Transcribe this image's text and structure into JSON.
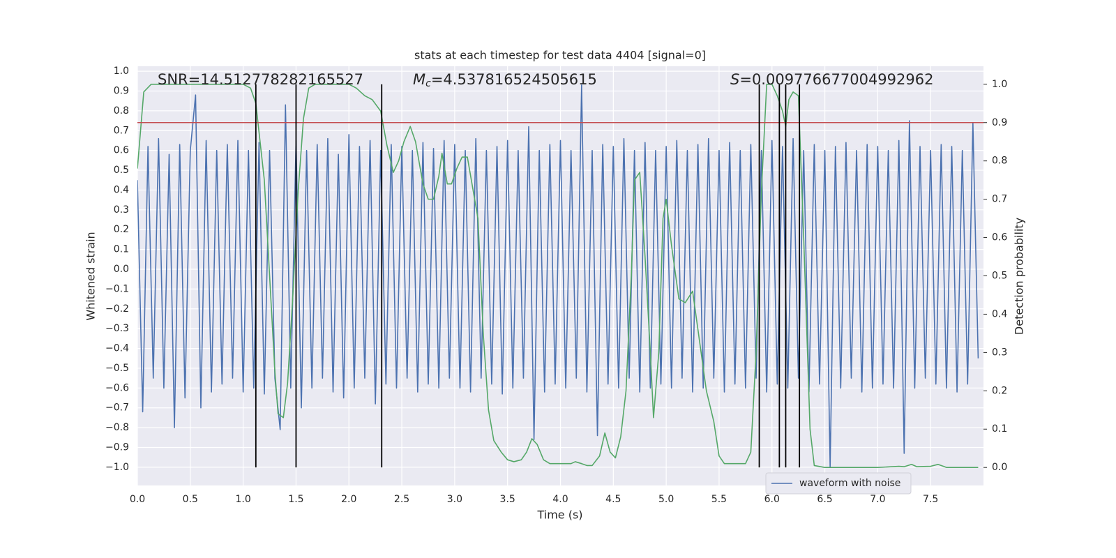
{
  "chart_data": {
    "type": "line",
    "title": "stats at each timestep for test data 4404 [signal=0]",
    "xlabel": "Time (s)",
    "ylabel": "Whitened strain",
    "y2label": "Detection probability",
    "annotations": [
      {
        "text": "SNR=14.512778282165527"
      },
      {
        "symbol": "M",
        "subscript": "c",
        "text": "=4.537816524505615"
      },
      {
        "symbol": "S",
        "text": "=0.009776677004992962"
      }
    ],
    "xlim": [
      0,
      8
    ],
    "ylim": [
      -1.092,
      1.025
    ],
    "y2lim": [
      -0.047,
      1.047
    ],
    "xticks": [
      {
        "value": 0,
        "label": "0.0"
      },
      0.5,
      {
        "value": 1,
        "label": "1.0"
      },
      1.5,
      {
        "value": 2,
        "label": "2.0"
      },
      2.5,
      {
        "value": 3,
        "label": "3.0"
      },
      3.5,
      {
        "value": 4,
        "label": "4.0"
      },
      4.5,
      {
        "value": 5,
        "label": "5.0"
      },
      5.5,
      {
        "value": 6,
        "label": "6.0"
      },
      6.5,
      {
        "value": 7,
        "label": "7.0"
      },
      7.5
    ],
    "yticks": [
      {
        "value": -1,
        "label": "−1.0"
      },
      {
        "value": -0.9,
        "label": "−0.9"
      },
      {
        "value": -0.8,
        "label": "−0.8"
      },
      {
        "value": -0.7,
        "label": "−0.7"
      },
      {
        "value": -0.6,
        "label": "−0.6"
      },
      {
        "value": -0.5,
        "label": "−0.5"
      },
      {
        "value": -0.4,
        "label": "−0.4"
      },
      {
        "value": -0.3,
        "label": "−0.3"
      },
      {
        "value": -0.2,
        "label": "−0.2"
      },
      {
        "value": -0.1,
        "label": "−0.1"
      },
      {
        "value": 0,
        "label": "0.0"
      },
      0.1,
      0.2,
      0.3,
      0.4,
      0.5,
      0.6,
      0.7,
      0.8,
      0.9,
      {
        "value": 1,
        "label": "1.0"
      }
    ],
    "y2ticks": [
      {
        "value": 0,
        "label": "0.0"
      },
      0.1,
      0.2,
      0.3,
      0.4,
      0.5,
      0.6,
      0.7,
      0.8,
      0.9,
      {
        "value": 1,
        "label": "1.0"
      }
    ],
    "grid": true,
    "legend": "lower right",
    "series": [
      {
        "name": "waveform with noise",
        "color": "#4c72b0",
        "x": [
          0,
          0.05,
          0.1,
          0.15,
          0.2,
          0.25,
          0.3,
          0.35,
          0.4,
          0.45,
          0.5,
          0.55,
          0.6,
          0.65,
          0.7,
          0.75,
          0.8,
          0.85,
          0.9,
          0.95,
          1,
          1.05,
          1.1,
          1.15,
          1.2,
          1.25,
          1.3,
          1.35,
          1.4,
          1.45,
          1.5,
          1.55,
          1.6,
          1.65,
          1.7,
          1.75,
          1.8,
          1.85,
          1.9,
          1.95,
          2,
          2.05,
          2.1,
          2.15,
          2.2,
          2.25,
          2.3,
          2.35,
          2.4,
          2.45,
          2.5,
          2.55,
          2.6,
          2.65,
          2.7,
          2.75,
          2.8,
          2.85,
          2.9,
          2.95,
          3,
          3.05,
          3.1,
          3.15,
          3.2,
          3.25,
          3.3,
          3.35,
          3.4,
          3.45,
          3.5,
          3.55,
          3.6,
          3.65,
          3.7,
          3.75,
          3.8,
          3.85,
          3.9,
          3.95,
          4,
          4.05,
          4.1,
          4.15,
          4.2,
          4.25,
          4.3,
          4.35,
          4.4,
          4.45,
          4.5,
          4.55,
          4.6,
          4.65,
          4.7,
          4.75,
          4.8,
          4.85,
          4.9,
          4.95,
          5,
          5.05,
          5.1,
          5.15,
          5.2,
          5.25,
          5.3,
          5.35,
          5.4,
          5.45,
          5.5,
          5.55,
          5.6,
          5.65,
          5.7,
          5.75,
          5.8,
          5.85,
          5.9,
          5.95,
          6,
          6.05,
          6.1,
          6.15,
          6.2,
          6.25,
          6.3,
          6.35,
          6.4,
          6.45,
          6.5,
          6.55,
          6.6,
          6.65,
          6.7,
          6.75,
          6.8,
          6.85,
          6.9,
          6.95,
          7,
          7.05,
          7.1,
          7.15,
          7.2,
          7.25,
          7.3,
          7.35,
          7.4,
          7.45,
          7.5,
          7.55,
          7.6,
          7.65,
          7.7,
          7.75,
          7.8,
          7.85,
          7.9,
          7.95
        ],
        "values": [
          0.45,
          -0.72,
          0.62,
          -0.55,
          0.66,
          -0.6,
          0.58,
          -0.8,
          0.63,
          -0.65,
          0.6,
          0.88,
          -0.7,
          0.65,
          -0.62,
          0.6,
          -0.58,
          0.63,
          -0.55,
          0.65,
          -0.62,
          0.6,
          -0.6,
          0.64,
          -0.63,
          0.6,
          -0.55,
          -0.81,
          0.83,
          -0.6,
          0.65,
          -0.7,
          0.6,
          -0.6,
          0.63,
          -0.55,
          0.66,
          -0.62,
          0.58,
          -0.65,
          0.68,
          -0.6,
          0.62,
          -0.55,
          0.65,
          -0.68,
          0.6,
          -0.58,
          0.63,
          -0.6,
          0.62,
          -0.55,
          0.6,
          -0.62,
          0.64,
          -0.58,
          0.61,
          -0.6,
          0.65,
          -0.55,
          0.63,
          -0.6,
          0.6,
          -0.62,
          0.66,
          -0.55,
          0.6,
          -0.58,
          0.62,
          -0.63,
          0.65,
          -0.6,
          0.6,
          -0.55,
          0.72,
          -0.86,
          0.6,
          -0.62,
          0.63,
          -0.58,
          0.65,
          -0.6,
          0.6,
          -0.55,
          0.93,
          -0.62,
          0.6,
          -0.84,
          0.63,
          -0.58,
          0.62,
          -0.6,
          0.66,
          -0.55,
          0.6,
          -0.62,
          0.64,
          -0.6,
          0.6,
          -0.58,
          0.62,
          -0.6,
          0.65,
          -0.55,
          0.6,
          -0.62,
          0.63,
          -0.6,
          0.66,
          -0.55,
          0.6,
          -0.62,
          0.64,
          -0.58,
          0.6,
          -0.6,
          0.63,
          -0.55,
          0.6,
          -0.62,
          0.65,
          -0.58,
          0.62,
          -0.6,
          0.66,
          -0.55,
          0.6,
          -0.62,
          0.63,
          -0.58,
          0.6,
          -1.0,
          0.62,
          -0.6,
          0.64,
          -0.55,
          0.6,
          -0.62,
          0.63,
          -0.6,
          0.62,
          -0.58,
          0.6,
          -0.6,
          0.65,
          -0.93,
          0.75,
          -0.6,
          0.62,
          -0.55,
          0.6,
          -0.58,
          0.63,
          -0.6,
          0.62,
          -0.62,
          0.6,
          -0.58,
          0.74,
          -0.45
        ]
      },
      {
        "color": "#55a868",
        "axis": "y2",
        "x": [
          0,
          0.06,
          0.13,
          0.3,
          0.5,
          0.8,
          1.0,
          1.07,
          1.12,
          1.2,
          1.25,
          1.3,
          1.33,
          1.38,
          1.42,
          1.47,
          1.52,
          1.57,
          1.62,
          1.68,
          1.8,
          2.0,
          2.07,
          2.15,
          2.22,
          2.3,
          2.36,
          2.42,
          2.47,
          2.52,
          2.58,
          2.63,
          2.7,
          2.75,
          2.8,
          2.85,
          2.88,
          2.93,
          2.97,
          3.02,
          3.07,
          3.12,
          3.17,
          3.22,
          3.27,
          3.32,
          3.37,
          3.44,
          3.5,
          3.56,
          3.63,
          3.68,
          3.73,
          3.78,
          3.84,
          3.9,
          4.0,
          4.1,
          4.14,
          4.2,
          4.25,
          4.3,
          4.37,
          4.42,
          4.47,
          4.52,
          4.57,
          4.62,
          4.67,
          4.7,
          4.75,
          4.8,
          4.85,
          4.88,
          4.93,
          4.97,
          5.0,
          5.05,
          5.12,
          5.18,
          5.25,
          5.32,
          5.38,
          5.45,
          5.5,
          5.55,
          5.62,
          5.68,
          5.75,
          5.8,
          5.85,
          5.9,
          5.95,
          6.0,
          6.05,
          6.1,
          6.13,
          6.16,
          6.2,
          6.25,
          6.3,
          6.36,
          6.4,
          6.5,
          6.6,
          7.0,
          7.2,
          7.25,
          7.32,
          7.37,
          7.5,
          7.57,
          7.65,
          7.95
        ],
        "values": [
          0.78,
          0.98,
          1.0,
          1.0,
          1.0,
          1.0,
          1.0,
          0.99,
          0.95,
          0.75,
          0.5,
          0.25,
          0.14,
          0.13,
          0.22,
          0.45,
          0.72,
          0.91,
          0.99,
          1.0,
          1.0,
          1.0,
          0.99,
          0.97,
          0.96,
          0.93,
          0.84,
          0.77,
          0.8,
          0.85,
          0.89,
          0.85,
          0.74,
          0.7,
          0.7,
          0.76,
          0.82,
          0.74,
          0.74,
          0.78,
          0.81,
          0.81,
          0.73,
          0.65,
          0.35,
          0.15,
          0.07,
          0.04,
          0.02,
          0.015,
          0.02,
          0.04,
          0.075,
          0.06,
          0.02,
          0.01,
          0.01,
          0.01,
          0.015,
          0.01,
          0.005,
          0.005,
          0.03,
          0.09,
          0.04,
          0.025,
          0.08,
          0.2,
          0.5,
          0.75,
          0.77,
          0.55,
          0.3,
          0.13,
          0.3,
          0.65,
          0.7,
          0.58,
          0.44,
          0.43,
          0.46,
          0.32,
          0.2,
          0.12,
          0.03,
          0.01,
          0.01,
          0.01,
          0.01,
          0.04,
          0.3,
          0.72,
          1.0,
          1.0,
          0.97,
          0.93,
          0.89,
          0.96,
          0.98,
          0.97,
          0.6,
          0.1,
          0.005,
          0.0,
          0.0,
          0.0,
          0.003,
          0.002,
          0.008,
          0.002,
          0.003,
          0.008,
          0.0,
          0.0
        ]
      }
    ],
    "hline": {
      "y2": 0.9,
      "color": "#c44e52"
    },
    "vlines": {
      "x": [
        1.12,
        1.5,
        2.31,
        5.88,
        6.07,
        6.13,
        6.26
      ],
      "y2range": [
        0,
        1
      ],
      "color": "#000000"
    }
  }
}
